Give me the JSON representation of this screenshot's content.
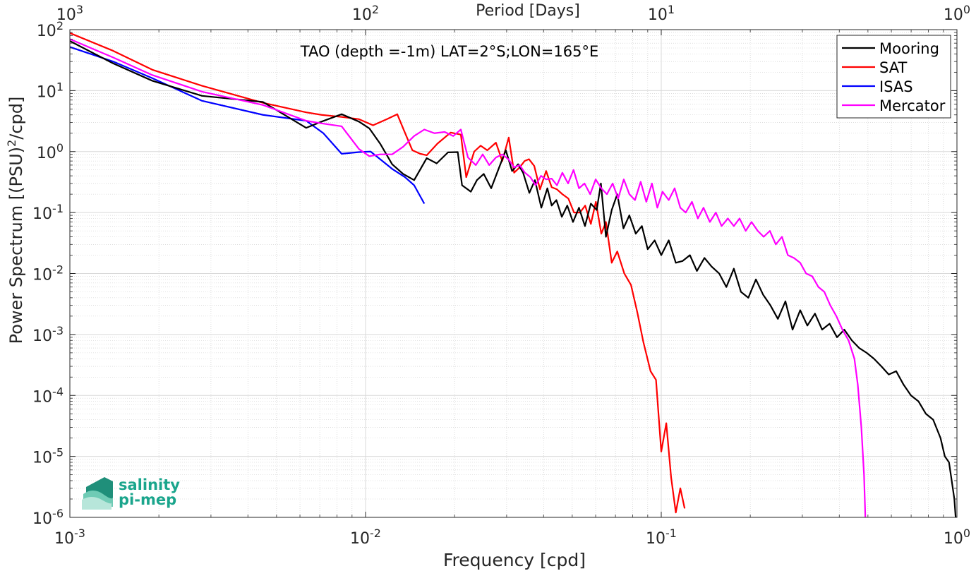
{
  "chart_data": {
    "type": "line",
    "title": "TAO (depth =-1m) LAT=2°S;LON=165°E",
    "xlabel": "Frequency [cpd]",
    "ylabel": "Power Spectrum [(PSU)²/cpd]",
    "top_xlabel": "Period [Days]",
    "xscale": "log",
    "yscale": "log",
    "xlim": [
      0.001,
      1
    ],
    "ylim": [
      1e-06,
      100
    ],
    "grid": true,
    "legend_position": "top-right",
    "x_ticks": [
      {
        "base": "10",
        "exp": "-3"
      },
      {
        "base": "10",
        "exp": "-2"
      },
      {
        "base": "10",
        "exp": "-1"
      },
      {
        "base": "10",
        "exp": "0"
      }
    ],
    "top_ticks": [
      {
        "base": "10",
        "exp": "3"
      },
      {
        "base": "10",
        "exp": "2"
      },
      {
        "base": "10",
        "exp": "1"
      },
      {
        "base": "10",
        "exp": "0"
      }
    ],
    "y_ticks": [
      {
        "base": "10",
        "exp": "-6"
      },
      {
        "base": "10",
        "exp": "-5"
      },
      {
        "base": "10",
        "exp": "-4"
      },
      {
        "base": "10",
        "exp": "-3"
      },
      {
        "base": "10",
        "exp": "-2"
      },
      {
        "base": "10",
        "exp": "-1"
      },
      {
        "base": "10",
        "exp": "0"
      },
      {
        "base": "10",
        "exp": "1"
      },
      {
        "base": "10",
        "exp": "2"
      }
    ],
    "series": [
      {
        "name": "Mooring",
        "color": "#000000",
        "x": [
          0.001,
          0.0014,
          0.0019,
          0.0028,
          0.0045,
          0.0063,
          0.0071,
          0.0083,
          0.0095,
          0.0103,
          0.0112,
          0.0123,
          0.0134,
          0.0146,
          0.0161,
          0.0174,
          0.019,
          0.0205,
          0.0212,
          0.0227,
          0.0238,
          0.0251,
          0.0266,
          0.0283,
          0.0298,
          0.0313,
          0.0328,
          0.0341,
          0.0358,
          0.0374,
          0.0393,
          0.0412,
          0.0426,
          0.0442,
          0.0461,
          0.0481,
          0.0503,
          0.0527,
          0.0552,
          0.0578,
          0.0605,
          0.0625,
          0.065,
          0.068,
          0.071,
          0.0745,
          0.078,
          0.082,
          0.086,
          0.09,
          0.095,
          0.1,
          0.106,
          0.112,
          0.118,
          0.125,
          0.132,
          0.14,
          0.148,
          0.157,
          0.166,
          0.176,
          0.186,
          0.197,
          0.209,
          0.221,
          0.234,
          0.248,
          0.263,
          0.278,
          0.295,
          0.312,
          0.331,
          0.35,
          0.371,
          0.393,
          0.416,
          0.441,
          0.467,
          0.495,
          0.524,
          0.555,
          0.588,
          0.623,
          0.66,
          0.699,
          0.741,
          0.785,
          0.831,
          0.88,
          0.91,
          0.94,
          0.96,
          0.98,
          0.99
        ],
        "y": [
          65,
          28,
          14.5,
          8.2,
          6.5,
          2.45,
          3.1,
          4.1,
          3.1,
          2.4,
          1.35,
          0.62,
          0.43,
          0.34,
          0.78,
          0.64,
          0.97,
          0.98,
          0.28,
          0.22,
          0.34,
          0.43,
          0.25,
          0.55,
          1.05,
          0.48,
          0.62,
          0.45,
          0.21,
          0.34,
          0.12,
          0.25,
          0.13,
          0.16,
          0.085,
          0.13,
          0.07,
          0.12,
          0.06,
          0.14,
          0.11,
          0.3,
          0.04,
          0.11,
          0.2,
          0.055,
          0.09,
          0.045,
          0.06,
          0.025,
          0.035,
          0.02,
          0.035,
          0.015,
          0.016,
          0.02,
          0.011,
          0.018,
          0.013,
          0.01,
          0.006,
          0.012,
          0.005,
          0.004,
          0.008,
          0.0045,
          0.003,
          0.0018,
          0.0035,
          0.0012,
          0.0025,
          0.0014,
          0.0022,
          0.0012,
          0.0015,
          0.0009,
          0.0012,
          0.0008,
          0.0006,
          0.0005,
          0.0004,
          0.0003,
          0.00022,
          0.00025,
          0.00015,
          0.0001,
          8e-05,
          5e-05,
          4e-05,
          2e-05,
          1e-05,
          8e-06,
          4e-06,
          2e-06,
          1e-06
        ]
      },
      {
        "name": "SAT",
        "color": "#ff0000",
        "x": [
          0.001,
          0.0014,
          0.0019,
          0.0028,
          0.0045,
          0.0063,
          0.0071,
          0.0083,
          0.0095,
          0.0106,
          0.0118,
          0.0128,
          0.0135,
          0.0144,
          0.0153,
          0.0161,
          0.0175,
          0.0194,
          0.021,
          0.0219,
          0.0233,
          0.0245,
          0.0258,
          0.0276,
          0.029,
          0.0305,
          0.0318,
          0.0332,
          0.0345,
          0.0357,
          0.0372,
          0.0389,
          0.0408,
          0.0426,
          0.0444,
          0.0463,
          0.0485,
          0.0507,
          0.0531,
          0.0553,
          0.0578,
          0.0601,
          0.0627,
          0.065,
          0.068,
          0.071,
          0.075,
          0.079,
          0.083,
          0.087,
          0.092,
          0.096,
          0.1,
          0.104,
          0.108,
          0.112,
          0.116,
          0.12
        ],
        "y": [
          88,
          45,
          22,
          12,
          6.3,
          4.4,
          4.0,
          3.7,
          3.4,
          2.7,
          3.4,
          4.1,
          2.2,
          1.05,
          0.92,
          0.87,
          1.35,
          2.05,
          1.9,
          0.38,
          1.0,
          1.25,
          1.05,
          1.4,
          0.7,
          1.7,
          0.45,
          0.55,
          0.7,
          0.75,
          0.58,
          0.24,
          0.48,
          0.26,
          0.24,
          0.2,
          0.17,
          0.1,
          0.1,
          0.13,
          0.065,
          0.15,
          0.045,
          0.07,
          0.015,
          0.023,
          0.01,
          0.0065,
          0.0023,
          0.00075,
          0.00025,
          0.00018,
          1.2e-05,
          3.5e-05,
          4.5e-06,
          1.2e-06,
          3e-06,
          1.4e-06
        ]
      },
      {
        "name": "ISAS",
        "color": "#0000ff",
        "x": [
          0.001,
          0.0014,
          0.0019,
          0.0028,
          0.0045,
          0.0063,
          0.0072,
          0.0083,
          0.0095,
          0.0104,
          0.0112,
          0.0123,
          0.0136,
          0.0146,
          0.0158
        ],
        "y": [
          52,
          30,
          16,
          6.8,
          4.0,
          3.2,
          2.0,
          0.92,
          0.98,
          1.0,
          0.75,
          0.52,
          0.38,
          0.28,
          0.14
        ]
      },
      {
        "name": "Mercator",
        "color": "#ff00ff",
        "x": [
          0.001,
          0.0014,
          0.0019,
          0.0028,
          0.0045,
          0.0063,
          0.0071,
          0.0083,
          0.0095,
          0.0103,
          0.0112,
          0.0123,
          0.0134,
          0.0146,
          0.0158,
          0.0171,
          0.0185,
          0.0198,
          0.021,
          0.0222,
          0.0236,
          0.0249,
          0.0262,
          0.0276,
          0.029,
          0.0304,
          0.0318,
          0.0332,
          0.0346,
          0.0361,
          0.0376,
          0.0392,
          0.0408,
          0.0426,
          0.0444,
          0.0463,
          0.0484,
          0.0505,
          0.0527,
          0.055,
          0.0575,
          0.06,
          0.0627,
          0.0655,
          0.0685,
          0.0715,
          0.0747,
          0.078,
          0.0815,
          0.0852,
          0.089,
          0.093,
          0.097,
          0.101,
          0.106,
          0.111,
          0.116,
          0.121,
          0.127,
          0.133,
          0.139,
          0.146,
          0.153,
          0.16,
          0.168,
          0.176,
          0.184,
          0.193,
          0.202,
          0.212,
          0.222,
          0.233,
          0.244,
          0.256,
          0.268,
          0.281,
          0.295,
          0.309,
          0.324,
          0.34,
          0.356,
          0.373,
          0.391,
          0.41,
          0.43,
          0.45,
          0.462,
          0.475,
          0.485,
          0.49
        ],
        "y": [
          70,
          35,
          18,
          9.6,
          5.8,
          3.2,
          2.9,
          2.6,
          1.1,
          0.84,
          0.9,
          0.9,
          1.2,
          1.8,
          2.3,
          2.0,
          2.1,
          1.8,
          2.3,
          0.8,
          0.6,
          0.9,
          0.6,
          0.8,
          0.9,
          0.75,
          0.55,
          0.6,
          0.45,
          0.38,
          0.28,
          0.4,
          0.35,
          0.36,
          0.28,
          0.45,
          0.3,
          0.5,
          0.25,
          0.3,
          0.2,
          0.35,
          0.25,
          0.2,
          0.3,
          0.17,
          0.35,
          0.2,
          0.16,
          0.32,
          0.15,
          0.3,
          0.12,
          0.22,
          0.16,
          0.25,
          0.12,
          0.1,
          0.15,
          0.08,
          0.12,
          0.07,
          0.1,
          0.06,
          0.08,
          0.06,
          0.08,
          0.05,
          0.07,
          0.05,
          0.04,
          0.05,
          0.03,
          0.04,
          0.02,
          0.018,
          0.015,
          0.01,
          0.009,
          0.006,
          0.005,
          0.003,
          0.002,
          0.0012,
          0.0008,
          0.0004,
          0.00015,
          3e-05,
          5e-06,
          1e-06
        ]
      }
    ]
  },
  "logo": {
    "line1": "salinity",
    "line2": "pi-mep",
    "color": "#1aa58c"
  }
}
